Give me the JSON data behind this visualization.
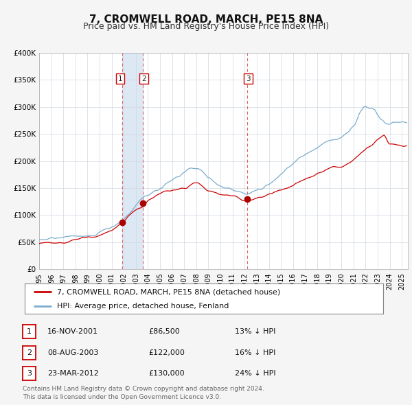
{
  "title": "7, CROMWELL ROAD, MARCH, PE15 8NA",
  "subtitle": "Price paid vs. HM Land Registry's House Price Index (HPI)",
  "ylim": [
    0,
    400000
  ],
  "yticks": [
    0,
    50000,
    100000,
    150000,
    200000,
    250000,
    300000,
    350000,
    400000
  ],
  "ytick_labels": [
    "£0",
    "£50K",
    "£100K",
    "£150K",
    "£200K",
    "£250K",
    "£300K",
    "£350K",
    "£400K"
  ],
  "xlim_start": 1995.0,
  "xlim_end": 2025.5,
  "sale_dates": [
    2001.88,
    2003.59,
    2012.22
  ],
  "sale_prices": [
    86500,
    122000,
    130000
  ],
  "sale_labels": [
    "1",
    "2",
    "3"
  ],
  "red_line_color": "#cc0000",
  "blue_line_color": "#7aadcc",
  "marker_color": "#aa0000",
  "vline_color": "#dd6666",
  "shade_color": "#dde8f5",
  "background_color": "#f5f5f5",
  "plot_bg_color": "#ffffff",
  "legend_label_red": "7, CROMWELL ROAD, MARCH, PE15 8NA (detached house)",
  "legend_label_blue": "HPI: Average price, detached house, Fenland",
  "table_entries": [
    {
      "num": "1",
      "date": "16-NOV-2001",
      "price": "£86,500",
      "note": "13% ↓ HPI"
    },
    {
      "num": "2",
      "date": "08-AUG-2003",
      "price": "£122,000",
      "note": "16% ↓ HPI"
    },
    {
      "num": "3",
      "date": "23-MAR-2012",
      "price": "£130,000",
      "note": "24% ↓ HPI"
    }
  ],
  "footer": "Contains HM Land Registry data © Crown copyright and database right 2024.\nThis data is licensed under the Open Government Licence v3.0.",
  "title_fontsize": 11,
  "subtitle_fontsize": 9,
  "tick_fontsize": 7.5,
  "legend_fontsize": 8,
  "table_fontsize": 8,
  "footer_fontsize": 6.5
}
